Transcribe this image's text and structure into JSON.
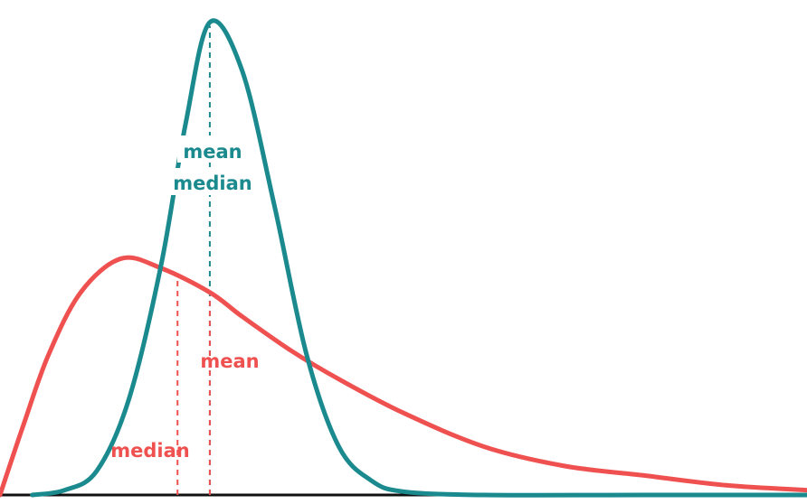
{
  "chart_data": {
    "type": "line",
    "title": "",
    "xlabel": "",
    "ylabel": "",
    "grid": false,
    "legend": "none",
    "xlim": [
      0,
      10
    ],
    "ylim": [
      0,
      1
    ],
    "series": [
      {
        "color": "#1a8a8e",
        "distribution": "symmetric",
        "x": [
          0.4,
          0.8,
          1.2,
          1.6,
          2.0,
          2.3,
          2.6,
          3.0,
          3.4,
          3.8,
          4.2,
          4.6,
          5.0,
          6.0,
          8.0,
          10.0
        ],
        "y": [
          0.0,
          0.01,
          0.05,
          0.2,
          0.48,
          0.77,
          0.98,
          0.88,
          0.6,
          0.29,
          0.1,
          0.03,
          0.007,
          0.0,
          0.0,
          0.0
        ],
        "annotations": [
          {
            "text": "mean",
            "x": 2.6
          },
          {
            "text": "median",
            "x": 2.6
          }
        ]
      },
      {
        "color": "#ef5150",
        "distribution": "right-skewed",
        "x": [
          0.0,
          0.3,
          0.6,
          1.0,
          1.5,
          2.0,
          2.6,
          3.0,
          3.6,
          4.2,
          5.0,
          6.0,
          7.0,
          8.0,
          9.0,
          10.0
        ],
        "y": [
          0.0,
          0.15,
          0.29,
          0.42,
          0.49,
          0.47,
          0.42,
          0.37,
          0.3,
          0.24,
          0.17,
          0.1,
          0.06,
          0.04,
          0.02,
          0.01
        ],
        "annotations": [
          {
            "text": "median",
            "x": 2.2
          },
          {
            "text": "mean",
            "x": 2.6
          }
        ]
      }
    ]
  }
}
